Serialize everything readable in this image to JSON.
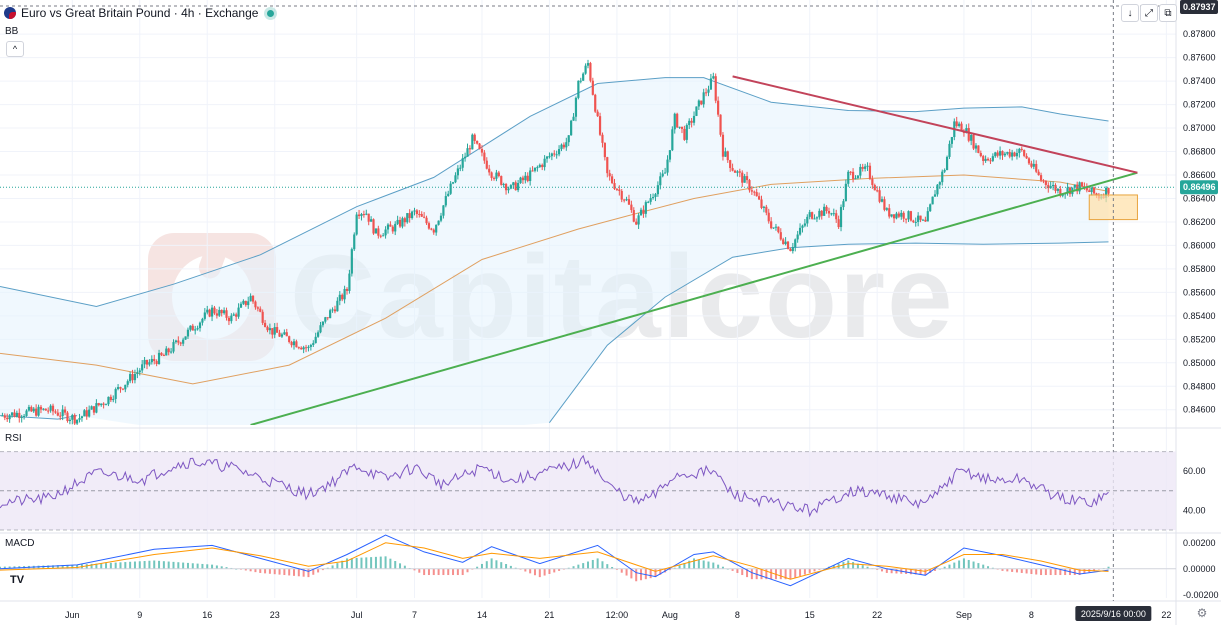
{
  "header": {
    "title": "Euro vs Great Britain Pound · 4h · Exchange",
    "bb_label": "BB",
    "collapse_glyph": "^",
    "icons": [
      "flag-icon",
      "live-status-dot-icon",
      "download-icon",
      "fullscreen-icon",
      "snapshot-icon"
    ]
  },
  "toolbar": {
    "down_arrow": "↓",
    "expand": "⤢",
    "camera": "⧉"
  },
  "watermark": {
    "text": "Capitalcore"
  },
  "colors": {
    "up": "#26a69a",
    "down": "#ef5350",
    "bb_band": "#5b9fc6",
    "bb_basis": "#e0a060",
    "bb_fill": "#e3f2fd",
    "resistance_line": "#c2435a",
    "support_line": "#4caf50",
    "rsi_line": "#7e57c2",
    "rsi_fill": "#ede7f6",
    "macd_line": "#2962ff",
    "signal_line": "#ff9800",
    "zone_fill": "#ffe0a6",
    "zone_border": "#e8a33d",
    "price_tag": "#2a2e39",
    "last_price_tag": "#26a69a"
  },
  "chart_data": [
    {
      "type": "candlestick",
      "pane": "price",
      "symbol": "EUR/GBP",
      "timeframe": "4h",
      "x_ticks": [
        "Jun",
        "9",
        "16",
        "23",
        "Jul",
        "7",
        "14",
        "21",
        "12:00",
        "Aug",
        "8",
        "15",
        "22",
        "Sep",
        "8",
        "22"
      ],
      "x_label_current": "2025/9/16  00:00",
      "y_ticks": [
        "0.87800",
        "0.87600",
        "0.87400",
        "0.87200",
        "0.87000",
        "0.86800",
        "0.86600",
        "0.86400",
        "0.86200",
        "0.86000",
        "0.85800",
        "0.85600",
        "0.85400",
        "0.85200",
        "0.85000",
        "0.84800",
        "0.84600"
      ],
      "ylim": [
        0.8447,
        0.8804
      ],
      "price_tags": {
        "high": "0.87937",
        "last": "0.86496"
      },
      "last_price": 0.86496,
      "close_path": [
        [
          0,
          0.8455
        ],
        [
          5,
          0.846
        ],
        [
          8,
          0.8452
        ],
        [
          11,
          0.8468
        ],
        [
          15,
          0.8498
        ],
        [
          17,
          0.8506
        ],
        [
          20,
          0.853
        ],
        [
          22,
          0.8545
        ],
        [
          24,
          0.8538
        ],
        [
          26,
          0.8556
        ],
        [
          28,
          0.8528
        ],
        [
          30,
          0.852
        ],
        [
          32,
          0.8512
        ],
        [
          34,
          0.854
        ],
        [
          36,
          0.8562
        ],
        [
          37,
          0.863
        ],
        [
          38,
          0.8628
        ],
        [
          39,
          0.861
        ],
        [
          41,
          0.8616
        ],
        [
          43,
          0.8628
        ],
        [
          45,
          0.8614
        ],
        [
          47,
          0.8654
        ],
        [
          49,
          0.869
        ],
        [
          51,
          0.8662
        ],
        [
          53,
          0.8648
        ],
        [
          55,
          0.866
        ],
        [
          57,
          0.8676
        ],
        [
          59,
          0.869
        ],
        [
          60,
          0.8738
        ],
        [
          61,
          0.8755
        ],
        [
          62,
          0.8706
        ],
        [
          63,
          0.866
        ],
        [
          65,
          0.8638
        ],
        [
          66,
          0.862
        ],
        [
          67,
          0.8634
        ],
        [
          69,
          0.8662
        ],
        [
          70,
          0.8708
        ],
        [
          71,
          0.8694
        ],
        [
          73,
          0.8728
        ],
        [
          74,
          0.8742
        ],
        [
          75,
          0.868
        ],
        [
          76,
          0.8666
        ],
        [
          78,
          0.8648
        ],
        [
          80,
          0.8618
        ],
        [
          82,
          0.8598
        ],
        [
          84,
          0.8626
        ],
        [
          86,
          0.863
        ],
        [
          87,
          0.862
        ],
        [
          88,
          0.866
        ],
        [
          90,
          0.8664
        ],
        [
          92,
          0.8628
        ],
        [
          94,
          0.8626
        ],
        [
          96,
          0.8618
        ],
        [
          97,
          0.8646
        ],
        [
          98,
          0.8666
        ],
        [
          99,
          0.8704
        ],
        [
          100,
          0.87
        ],
        [
          102,
          0.8674
        ],
        [
          104,
          0.8678
        ],
        [
          106,
          0.868
        ],
        [
          108,
          0.8656
        ],
        [
          110,
          0.8646
        ],
        [
          112,
          0.865
        ],
        [
          114,
          0.8642
        ],
        [
          115,
          0.8648
        ]
      ],
      "series": [
        {
          "name": "BB",
          "role": "upper",
          "points": [
            [
              0,
              0.8565
            ],
            [
              10,
              0.8548
            ],
            [
              18,
              0.8567
            ],
            [
              27,
              0.8592
            ],
            [
              37,
              0.8633
            ],
            [
              45,
              0.8658
            ],
            [
              55,
              0.871
            ],
            [
              62,
              0.8738
            ],
            [
              69,
              0.8743
            ],
            [
              73,
              0.8743
            ],
            [
              80,
              0.8722
            ],
            [
              88,
              0.8715
            ],
            [
              95,
              0.8714
            ],
            [
              100,
              0.8717
            ],
            [
              106,
              0.8718
            ],
            [
              110,
              0.8712
            ],
            [
              115,
              0.8706
            ]
          ]
        },
        {
          "name": "BB",
          "role": "basis",
          "points": [
            [
              0,
              0.8508
            ],
            [
              10,
              0.8498
            ],
            [
              20,
              0.8482
            ],
            [
              30,
              0.8498
            ],
            [
              40,
              0.8538
            ],
            [
              50,
              0.8588
            ],
            [
              60,
              0.8614
            ],
            [
              65,
              0.8625
            ],
            [
              72,
              0.864
            ],
            [
              80,
              0.8652
            ],
            [
              90,
              0.8657
            ],
            [
              100,
              0.866
            ],
            [
              110,
              0.8654
            ],
            [
              115,
              0.8646
            ]
          ]
        },
        {
          "name": "BB",
          "role": "lower",
          "points": [
            [
              0,
              0.8455
            ],
            [
              6,
              0.8452
            ],
            [
              8,
              0.8455
            ]
          ]
        },
        {
          "name": "BB",
          "role": "lower",
          "points": [
            [
              57,
              0.8449
            ],
            [
              63,
              0.8515
            ],
            [
              69,
              0.8556
            ],
            [
              76,
              0.859
            ],
            [
              82,
              0.8598
            ],
            [
              88,
              0.8601
            ],
            [
              95,
              0.8602
            ],
            [
              102,
              0.8601
            ],
            [
              110,
              0.8602
            ],
            [
              115,
              0.8603
            ]
          ]
        },
        {
          "name": "resistance",
          "points": [
            [
              76,
              0.8744
            ],
            [
              118,
              0.8662
            ]
          ]
        },
        {
          "name": "support",
          "points": [
            [
              26,
              0.8447
            ],
            [
              118,
              0.8662
            ]
          ]
        }
      ],
      "zone": {
        "x": [
          113,
          118
        ],
        "y": [
          0.8622,
          0.8643
        ]
      },
      "x_pos_ticks": [
        7.5,
        14.5,
        21.5,
        28.5,
        37,
        43,
        50,
        57,
        64,
        69.5,
        76.5,
        84,
        91,
        100,
        107,
        121
      ]
    },
    {
      "type": "line",
      "pane": "rsi",
      "label": "RSI",
      "y_ticks": [
        "60.00",
        "40.00"
      ],
      "ylim": [
        30,
        80
      ],
      "bands": [
        70,
        50,
        30
      ],
      "series": [
        {
          "name": "RSI",
          "points": [
            [
              0,
              44
            ],
            [
              5,
              46
            ],
            [
              10,
              59
            ],
            [
              15,
              56
            ],
            [
              18,
              63
            ],
            [
              20,
              65
            ],
            [
              24,
              62
            ],
            [
              28,
              55
            ],
            [
              32,
              48
            ],
            [
              35,
              56
            ],
            [
              37,
              63
            ],
            [
              40,
              56
            ],
            [
              43,
              62
            ],
            [
              46,
              53
            ],
            [
              50,
              62
            ],
            [
              53,
              55
            ],
            [
              57,
              60
            ],
            [
              60,
              64
            ],
            [
              61,
              66
            ],
            [
              63,
              53
            ],
            [
              66,
              44
            ],
            [
              68,
              48
            ],
            [
              70,
              58
            ],
            [
              74,
              60
            ],
            [
              76,
              48
            ],
            [
              80,
              44
            ],
            [
              84,
              40
            ],
            [
              86,
              44
            ],
            [
              88,
              50
            ],
            [
              92,
              48
            ],
            [
              95,
              43
            ],
            [
              97,
              47
            ],
            [
              99,
              58
            ],
            [
              100,
              60
            ],
            [
              103,
              55
            ],
            [
              106,
              56
            ],
            [
              110,
              46
            ],
            [
              113,
              44
            ],
            [
              115,
              48
            ]
          ]
        }
      ]
    },
    {
      "type": "line",
      "pane": "macd",
      "label": "MACD",
      "y_ticks": [
        "0.00200",
        "0.00000",
        "-0.00200"
      ],
      "ylim": [
        -0.00225,
        0.00245
      ],
      "series": [
        {
          "name": "MACD",
          "points": [
            [
              0,
              0.0
            ],
            [
              8,
              0.0003
            ],
            [
              16,
              0.0015
            ],
            [
              22,
              0.0018
            ],
            [
              27,
              0.0008
            ],
            [
              32,
              -0.0002
            ],
            [
              36,
              0.0011
            ],
            [
              40,
              0.0026
            ],
            [
              44,
              0.0013
            ],
            [
              48,
              0.0005
            ],
            [
              51,
              0.0017
            ],
            [
              56,
              0.0004
            ],
            [
              62,
              0.0018
            ],
            [
              66,
              -0.0003
            ],
            [
              68,
              -0.0006
            ],
            [
              72,
              0.0011
            ],
            [
              74,
              0.0013
            ],
            [
              78,
              -0.0003
            ],
            [
              82,
              -0.0013
            ],
            [
              88,
              0.0008
            ],
            [
              92,
              0.0
            ],
            [
              96,
              -0.0005
            ],
            [
              100,
              0.0016
            ],
            [
              104,
              0.001
            ],
            [
              108,
              0.0003
            ],
            [
              112,
              -0.0004
            ],
            [
              115,
              -0.0001
            ]
          ]
        },
        {
          "name": "Signal",
          "points": [
            [
              0,
              -0.0001
            ],
            [
              8,
              0.0001
            ],
            [
              16,
              0.0011
            ],
            [
              22,
              0.0016
            ],
            [
              27,
              0.001
            ],
            [
              32,
              0.0002
            ],
            [
              36,
              0.0006
            ],
            [
              40,
              0.002
            ],
            [
              44,
              0.0016
            ],
            [
              48,
              0.0008
            ],
            [
              51,
              0.0012
            ],
            [
              56,
              0.0008
            ],
            [
              62,
              0.0013
            ],
            [
              66,
              0.0003
            ],
            [
              68,
              -0.0002
            ],
            [
              72,
              0.0006
            ],
            [
              74,
              0.001
            ],
            [
              78,
              0.0002
            ],
            [
              82,
              -0.0008
            ],
            [
              88,
              0.0004
            ],
            [
              92,
              0.0002
            ],
            [
              96,
              -0.0002
            ],
            [
              100,
              0.0011
            ],
            [
              104,
              0.0011
            ],
            [
              108,
              0.0006
            ],
            [
              112,
              -0.0001
            ],
            [
              115,
              -0.0002
            ]
          ]
        }
      ]
    }
  ]
}
